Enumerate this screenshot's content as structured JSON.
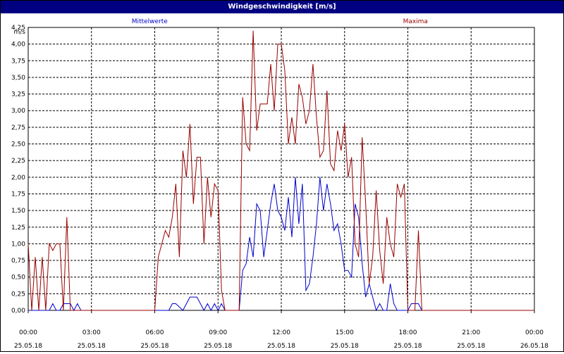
{
  "window": {
    "title": "Windgeschwindigkeit [m/s]"
  },
  "chart_data": {
    "type": "line",
    "title": "Windgeschwindigkeit [m/s]",
    "ylabel": "m/s",
    "xlabel": "",
    "ylim": [
      0,
      4.25
    ],
    "xlim": [
      "25.05.18 00:00",
      "26.05.18 00:00"
    ],
    "grid": true,
    "y_ticks": [
      "0,00",
      "0,25",
      "0,50",
      "0,75",
      "1,00",
      "1,25",
      "1,50",
      "1,75",
      "2,00",
      "2,25",
      "2,50",
      "2,75",
      "3,00",
      "3,25",
      "3,50",
      "3,75",
      "4,00",
      "4,25"
    ],
    "x_ticks": [
      {
        "time": "00:00",
        "date": "25.05.18"
      },
      {
        "time": "03:00",
        "date": "25.05.18"
      },
      {
        "time": "06:00",
        "date": "25.05.18"
      },
      {
        "time": "09:00",
        "date": "25.05.18"
      },
      {
        "time": "12:00",
        "date": "25.05.18"
      },
      {
        "time": "15:00",
        "date": "25.05.18"
      },
      {
        "time": "18:00",
        "date": "25.05.18"
      },
      {
        "time": "21:00",
        "date": "25.05.18"
      },
      {
        "time": "00:00",
        "date": "26.05.18"
      }
    ],
    "series": [
      {
        "name": "Mittelwerte",
        "color": "#0000cc",
        "x": [
          "00:00",
          "01:00",
          "01:10",
          "01:20",
          "01:30",
          "01:40",
          "02:00",
          "02:10",
          "02:20",
          "02:30",
          "06:00",
          "06:40",
          "06:50",
          "07:00",
          "07:20",
          "07:40",
          "08:00",
          "08:10",
          "08:20",
          "08:30",
          "08:40",
          "08:50",
          "09:00",
          "09:10",
          "09:20",
          "10:00",
          "10:10",
          "10:20",
          "10:30",
          "10:40",
          "10:50",
          "11:00",
          "11:10",
          "11:20",
          "11:30",
          "11:40",
          "11:50",
          "12:00",
          "12:10",
          "12:20",
          "12:30",
          "12:40",
          "12:50",
          "13:00",
          "13:10",
          "13:20",
          "13:30",
          "13:40",
          "13:50",
          "14:00",
          "14:10",
          "14:20",
          "14:30",
          "14:40",
          "14:50",
          "15:00",
          "15:10",
          "15:20",
          "15:30",
          "15:40",
          "15:50",
          "16:00",
          "16:10",
          "16:20",
          "16:30",
          "16:40",
          "16:50",
          "17:00",
          "17:10",
          "17:20",
          "17:30",
          "17:40",
          "17:50",
          "18:00",
          "18:10",
          "18:20",
          "18:30",
          "18:40",
          "18:50",
          "19:00",
          "19:10",
          "24:00"
        ],
        "values": [
          0,
          0,
          0.1,
          0,
          0,
          0.1,
          0.1,
          0,
          0.1,
          0,
          0,
          0,
          0.1,
          0.1,
          0,
          0.2,
          0.2,
          0.1,
          0,
          0.1,
          0,
          0.1,
          0,
          0.1,
          0,
          0,
          0.6,
          0.7,
          1.1,
          0.8,
          1.6,
          1.5,
          0.8,
          1.2,
          1.6,
          1.9,
          1.5,
          1.4,
          1.2,
          1.7,
          1.1,
          2.0,
          1.3,
          1.9,
          0.3,
          0.4,
          0.8,
          1.3,
          2.0,
          1.5,
          1.9,
          1.6,
          1.2,
          1.3,
          1.0,
          0.6,
          0.6,
          0.5,
          1.6,
          1.4,
          0.7,
          0.2,
          0.4,
          0.2,
          0,
          0.1,
          0,
          0,
          0.4,
          0.1,
          0,
          0,
          0,
          0,
          0.1,
          0.1,
          0.1,
          0,
          0,
          0,
          0,
          0
        ]
      },
      {
        "name": "Maxima",
        "color": "#990000",
        "x": [
          "00:00",
          "00:10",
          "00:20",
          "00:30",
          "00:40",
          "00:50",
          "01:00",
          "01:10",
          "01:20",
          "01:30",
          "01:40",
          "01:50",
          "02:00",
          "02:10",
          "02:20",
          "02:30",
          "02:40",
          "06:00",
          "06:10",
          "06:20",
          "06:30",
          "06:40",
          "06:50",
          "07:00",
          "07:10",
          "07:20",
          "07:30",
          "07:40",
          "07:50",
          "08:00",
          "08:10",
          "08:20",
          "08:30",
          "08:40",
          "08:50",
          "09:00",
          "09:10",
          "09:20",
          "10:00",
          "10:10",
          "10:20",
          "10:30",
          "10:40",
          "10:50",
          "11:00",
          "11:10",
          "11:20",
          "11:30",
          "11:40",
          "11:50",
          "12:00",
          "12:10",
          "12:20",
          "12:30",
          "12:40",
          "12:50",
          "13:00",
          "13:10",
          "13:20",
          "13:30",
          "13:40",
          "13:50",
          "14:00",
          "14:10",
          "14:20",
          "14:30",
          "14:40",
          "14:50",
          "15:00",
          "15:10",
          "15:20",
          "15:30",
          "15:40",
          "15:50",
          "16:00",
          "16:10",
          "16:20",
          "16:30",
          "16:40",
          "16:50",
          "17:00",
          "17:10",
          "17:20",
          "17:30",
          "17:40",
          "17:50",
          "18:00",
          "18:10",
          "18:20",
          "18:30",
          "18:40",
          "18:50",
          "19:00",
          "19:10",
          "19:20",
          "19:30",
          "24:00"
        ],
        "values": [
          1.0,
          0,
          0.8,
          0,
          0.8,
          0,
          1.0,
          0.9,
          1.0,
          1.0,
          0,
          1.4,
          0,
          0,
          0,
          0,
          0,
          0,
          0.8,
          1.0,
          1.2,
          1.1,
          1.4,
          1.9,
          0.8,
          2.4,
          2.0,
          2.8,
          1.6,
          2.3,
          2.3,
          1.0,
          2.0,
          1.4,
          1.9,
          1.8,
          0.3,
          0,
          0,
          3.2,
          2.5,
          2.4,
          4.2,
          2.7,
          3.1,
          3.1,
          3.1,
          3.7,
          3.0,
          4.0,
          4.0,
          3.6,
          2.5,
          2.9,
          2.5,
          3.4,
          3.2,
          2.8,
          3.0,
          3.7,
          2.9,
          2.3,
          2.4,
          3.3,
          2.2,
          2.1,
          2.7,
          2.4,
          2.8,
          2.0,
          2.3,
          1.0,
          0.8,
          2.6,
          1.6,
          0.4,
          0.8,
          1.8,
          0.9,
          0.4,
          1.4,
          1.0,
          0.8,
          1.9,
          1.7,
          1.9,
          0,
          0,
          0,
          1.2,
          0,
          0,
          0,
          0,
          0,
          0,
          0
        ]
      }
    ]
  }
}
